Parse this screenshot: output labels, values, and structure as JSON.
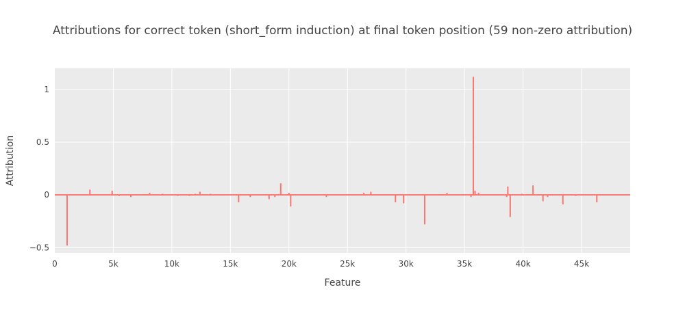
{
  "chart_data": {
    "type": "line",
    "title": "Attributions for correct token (short_form induction) at final token position (59 non-zero attribution)",
    "xlabel": "Feature",
    "ylabel": "Attribution",
    "xlim": [
      0,
      49152
    ],
    "ylim": [
      -0.55,
      1.2
    ],
    "x_ticks": [
      0,
      5000,
      10000,
      15000,
      20000,
      25000,
      30000,
      35000,
      40000,
      45000
    ],
    "x_tick_labels": [
      "0",
      "5k",
      "10k",
      "15k",
      "20k",
      "25k",
      "30k",
      "35k",
      "40k",
      "45k"
    ],
    "y_ticks": [
      -0.5,
      0,
      0.5,
      1
    ],
    "y_tick_labels": [
      "−0.5",
      "0",
      "0.5",
      "1"
    ],
    "grid": true,
    "legend": "none",
    "colors": {
      "series": "#F8766D",
      "plot_bg": "#EBEBEB",
      "grid": "#ffffff"
    },
    "series": [
      {
        "x": [
          1050,
          3000,
          4900,
          5500,
          6500,
          8100,
          9200,
          10500,
          11500,
          12000,
          12400,
          13300,
          15700,
          16700,
          18300,
          18800,
          19300,
          20000,
          20150,
          23200,
          26400,
          27000,
          29100,
          29800,
          31600,
          33500,
          35550,
          35750,
          35900,
          36200,
          38600,
          38700,
          38900,
          39900,
          40850,
          41700,
          42100,
          43400,
          44500,
          46300
        ],
        "y": [
          -0.48,
          0.05,
          0.04,
          -0.01,
          -0.02,
          0.02,
          0.01,
          -0.01,
          -0.01,
          0.01,
          0.03,
          0.01,
          -0.07,
          -0.02,
          -0.04,
          -0.02,
          0.11,
          0.02,
          -0.11,
          -0.02,
          0.02,
          0.03,
          -0.07,
          -0.08,
          -0.28,
          0.02,
          -0.02,
          1.12,
          0.04,
          0.02,
          -0.02,
          0.08,
          -0.21,
          0.01,
          0.09,
          -0.06,
          -0.02,
          -0.09,
          -0.01,
          -0.07
        ]
      }
    ]
  }
}
